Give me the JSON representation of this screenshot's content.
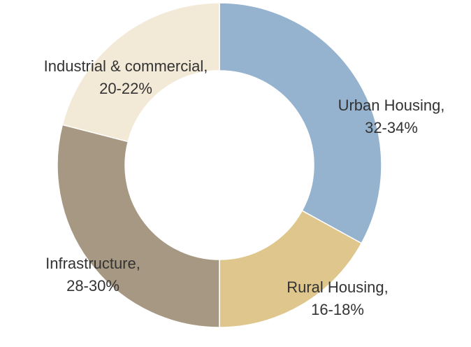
{
  "chart_data": {
    "type": "donut",
    "categories": [
      "Urban Housing,",
      "Rural Housing,",
      "Infrastructure,",
      "Industrial & commercial,"
    ],
    "values": [
      33,
      17,
      29,
      21
    ],
    "value_labels": [
      "32-34%",
      "16-18%",
      "28-30%",
      "20-22%"
    ],
    "colors": [
      "#95b3cf",
      "#dfc68c",
      "#a69883",
      "#f2e9d7"
    ]
  }
}
